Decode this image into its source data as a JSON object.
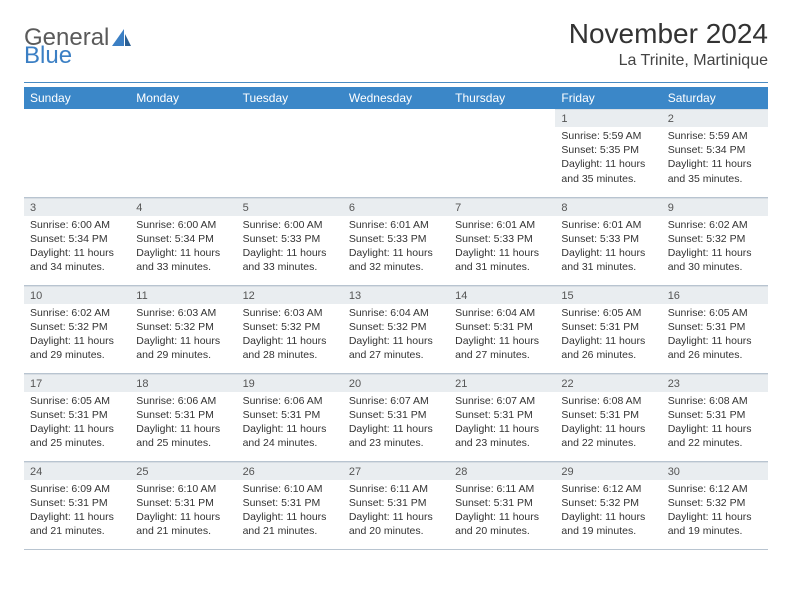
{
  "logo": {
    "text1": "General",
    "text2": "Blue"
  },
  "title": "November 2024",
  "location": "La Trinite, Martinique",
  "colors": {
    "header_bg": "#3b87c8",
    "header_text": "#ffffff",
    "daynum_bg": "#e9edf0",
    "border": "#b8c4d0",
    "logo_gray": "#5a5a5a",
    "logo_blue": "#3b7fc4"
  },
  "weekdays": [
    "Sunday",
    "Monday",
    "Tuesday",
    "Wednesday",
    "Thursday",
    "Friday",
    "Saturday"
  ],
  "weeks": [
    [
      {
        "n": "",
        "sr": "",
        "ss": "",
        "dl1": "",
        "dl2": "",
        "empty": true
      },
      {
        "n": "",
        "sr": "",
        "ss": "",
        "dl1": "",
        "dl2": "",
        "empty": true
      },
      {
        "n": "",
        "sr": "",
        "ss": "",
        "dl1": "",
        "dl2": "",
        "empty": true
      },
      {
        "n": "",
        "sr": "",
        "ss": "",
        "dl1": "",
        "dl2": "",
        "empty": true
      },
      {
        "n": "",
        "sr": "",
        "ss": "",
        "dl1": "",
        "dl2": "",
        "empty": true
      },
      {
        "n": "1",
        "sr": "Sunrise: 5:59 AM",
        "ss": "Sunset: 5:35 PM",
        "dl1": "Daylight: 11 hours",
        "dl2": "and 35 minutes."
      },
      {
        "n": "2",
        "sr": "Sunrise: 5:59 AM",
        "ss": "Sunset: 5:34 PM",
        "dl1": "Daylight: 11 hours",
        "dl2": "and 35 minutes."
      }
    ],
    [
      {
        "n": "3",
        "sr": "Sunrise: 6:00 AM",
        "ss": "Sunset: 5:34 PM",
        "dl1": "Daylight: 11 hours",
        "dl2": "and 34 minutes."
      },
      {
        "n": "4",
        "sr": "Sunrise: 6:00 AM",
        "ss": "Sunset: 5:34 PM",
        "dl1": "Daylight: 11 hours",
        "dl2": "and 33 minutes."
      },
      {
        "n": "5",
        "sr": "Sunrise: 6:00 AM",
        "ss": "Sunset: 5:33 PM",
        "dl1": "Daylight: 11 hours",
        "dl2": "and 33 minutes."
      },
      {
        "n": "6",
        "sr": "Sunrise: 6:01 AM",
        "ss": "Sunset: 5:33 PM",
        "dl1": "Daylight: 11 hours",
        "dl2": "and 32 minutes."
      },
      {
        "n": "7",
        "sr": "Sunrise: 6:01 AM",
        "ss": "Sunset: 5:33 PM",
        "dl1": "Daylight: 11 hours",
        "dl2": "and 31 minutes."
      },
      {
        "n": "8",
        "sr": "Sunrise: 6:01 AM",
        "ss": "Sunset: 5:33 PM",
        "dl1": "Daylight: 11 hours",
        "dl2": "and 31 minutes."
      },
      {
        "n": "9",
        "sr": "Sunrise: 6:02 AM",
        "ss": "Sunset: 5:32 PM",
        "dl1": "Daylight: 11 hours",
        "dl2": "and 30 minutes."
      }
    ],
    [
      {
        "n": "10",
        "sr": "Sunrise: 6:02 AM",
        "ss": "Sunset: 5:32 PM",
        "dl1": "Daylight: 11 hours",
        "dl2": "and 29 minutes."
      },
      {
        "n": "11",
        "sr": "Sunrise: 6:03 AM",
        "ss": "Sunset: 5:32 PM",
        "dl1": "Daylight: 11 hours",
        "dl2": "and 29 minutes."
      },
      {
        "n": "12",
        "sr": "Sunrise: 6:03 AM",
        "ss": "Sunset: 5:32 PM",
        "dl1": "Daylight: 11 hours",
        "dl2": "and 28 minutes."
      },
      {
        "n": "13",
        "sr": "Sunrise: 6:04 AM",
        "ss": "Sunset: 5:32 PM",
        "dl1": "Daylight: 11 hours",
        "dl2": "and 27 minutes."
      },
      {
        "n": "14",
        "sr": "Sunrise: 6:04 AM",
        "ss": "Sunset: 5:31 PM",
        "dl1": "Daylight: 11 hours",
        "dl2": "and 27 minutes."
      },
      {
        "n": "15",
        "sr": "Sunrise: 6:05 AM",
        "ss": "Sunset: 5:31 PM",
        "dl1": "Daylight: 11 hours",
        "dl2": "and 26 minutes."
      },
      {
        "n": "16",
        "sr": "Sunrise: 6:05 AM",
        "ss": "Sunset: 5:31 PM",
        "dl1": "Daylight: 11 hours",
        "dl2": "and 26 minutes."
      }
    ],
    [
      {
        "n": "17",
        "sr": "Sunrise: 6:05 AM",
        "ss": "Sunset: 5:31 PM",
        "dl1": "Daylight: 11 hours",
        "dl2": "and 25 minutes."
      },
      {
        "n": "18",
        "sr": "Sunrise: 6:06 AM",
        "ss": "Sunset: 5:31 PM",
        "dl1": "Daylight: 11 hours",
        "dl2": "and 25 minutes."
      },
      {
        "n": "19",
        "sr": "Sunrise: 6:06 AM",
        "ss": "Sunset: 5:31 PM",
        "dl1": "Daylight: 11 hours",
        "dl2": "and 24 minutes."
      },
      {
        "n": "20",
        "sr": "Sunrise: 6:07 AM",
        "ss": "Sunset: 5:31 PM",
        "dl1": "Daylight: 11 hours",
        "dl2": "and 23 minutes."
      },
      {
        "n": "21",
        "sr": "Sunrise: 6:07 AM",
        "ss": "Sunset: 5:31 PM",
        "dl1": "Daylight: 11 hours",
        "dl2": "and 23 minutes."
      },
      {
        "n": "22",
        "sr": "Sunrise: 6:08 AM",
        "ss": "Sunset: 5:31 PM",
        "dl1": "Daylight: 11 hours",
        "dl2": "and 22 minutes."
      },
      {
        "n": "23",
        "sr": "Sunrise: 6:08 AM",
        "ss": "Sunset: 5:31 PM",
        "dl1": "Daylight: 11 hours",
        "dl2": "and 22 minutes."
      }
    ],
    [
      {
        "n": "24",
        "sr": "Sunrise: 6:09 AM",
        "ss": "Sunset: 5:31 PM",
        "dl1": "Daylight: 11 hours",
        "dl2": "and 21 minutes."
      },
      {
        "n": "25",
        "sr": "Sunrise: 6:10 AM",
        "ss": "Sunset: 5:31 PM",
        "dl1": "Daylight: 11 hours",
        "dl2": "and 21 minutes."
      },
      {
        "n": "26",
        "sr": "Sunrise: 6:10 AM",
        "ss": "Sunset: 5:31 PM",
        "dl1": "Daylight: 11 hours",
        "dl2": "and 21 minutes."
      },
      {
        "n": "27",
        "sr": "Sunrise: 6:11 AM",
        "ss": "Sunset: 5:31 PM",
        "dl1": "Daylight: 11 hours",
        "dl2": "and 20 minutes."
      },
      {
        "n": "28",
        "sr": "Sunrise: 6:11 AM",
        "ss": "Sunset: 5:31 PM",
        "dl1": "Daylight: 11 hours",
        "dl2": "and 20 minutes."
      },
      {
        "n": "29",
        "sr": "Sunrise: 6:12 AM",
        "ss": "Sunset: 5:32 PM",
        "dl1": "Daylight: 11 hours",
        "dl2": "and 19 minutes."
      },
      {
        "n": "30",
        "sr": "Sunrise: 6:12 AM",
        "ss": "Sunset: 5:32 PM",
        "dl1": "Daylight: 11 hours",
        "dl2": "and 19 minutes."
      }
    ]
  ]
}
